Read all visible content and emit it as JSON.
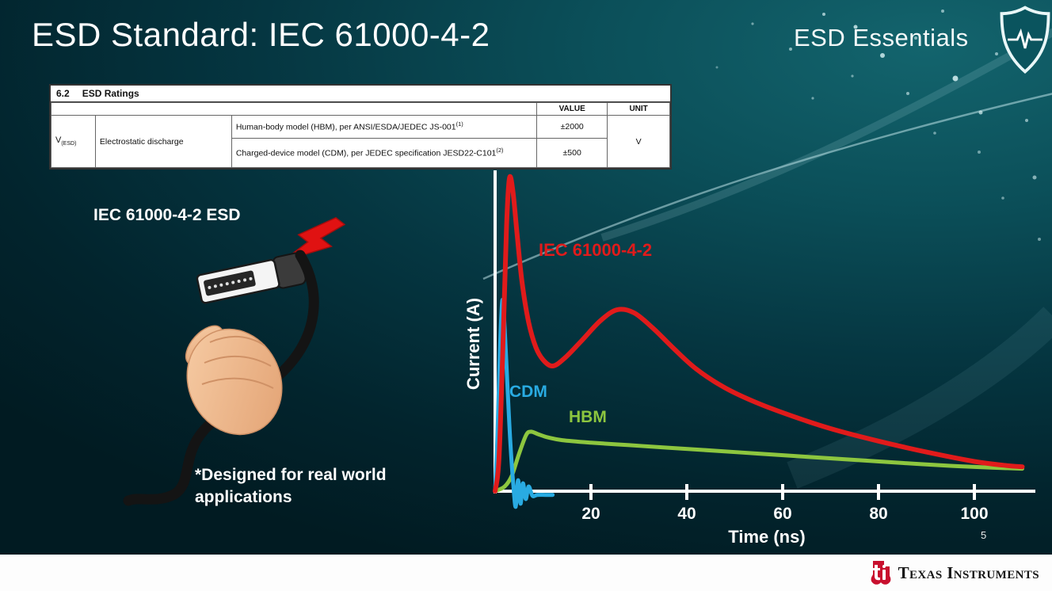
{
  "slide": {
    "title": "ESD Standard: IEC 61000-4-2",
    "series_brand": "ESD Essentials",
    "page_number": "5"
  },
  "ratings_table": {
    "section_number": "6.2",
    "section_title": "ESD Ratings",
    "value_header": "VALUE",
    "unit_header": "UNIT",
    "symbol_base": "V",
    "symbol_sub": "(ESD)",
    "parameter": "Electrostatic discharge",
    "rows": [
      {
        "description": "Human-body model (HBM), per ANSI/ESDA/JEDEC JS-001",
        "footnote": "(1)",
        "value": "±2000"
      },
      {
        "description": "Charged-device model (CDM), per JEDEC specification JESD22-C101",
        "footnote": "(2)",
        "value": "±500"
      }
    ],
    "unit": "V"
  },
  "illustration": {
    "caption": "IEC 61000-4-2 ESD",
    "note": "*Designed for real world\napplications"
  },
  "footer": {
    "brand": "Texas Instruments"
  },
  "icons": {
    "top_right": "esd-shield-with-pulse",
    "strike": "red-lightning-bolt",
    "footer": "ti-red-bug"
  },
  "colors": {
    "background_teal": "#0b4f59",
    "iec_red": "#e01b1b",
    "cdm_cyan": "#29abe2",
    "hbm_green": "#8dc63f",
    "axis_white": "#ffffff"
  },
  "chart_data": {
    "type": "line",
    "title": "",
    "xlabel": "Time (ns)",
    "ylabel": "Current (A)",
    "x_ticks": [
      20,
      40,
      60,
      80,
      100
    ],
    "xlim": [
      0,
      112
    ],
    "grid": false,
    "y_axis_note": "y-axis unlabeled; amplitudes relative to IEC 61000-4-2 peak = 1.0",
    "series": [
      {
        "name": "IEC 61000-4-2",
        "color": "#e01b1b",
        "stroke_width": 6,
        "points": [
          [
            0,
            0
          ],
          [
            0.8,
            0.1
          ],
          [
            1.6,
            0.45
          ],
          [
            2.4,
            0.85
          ],
          [
            3,
            1
          ],
          [
            3.7,
            0.96
          ],
          [
            4.6,
            0.82
          ],
          [
            5.6,
            0.67
          ],
          [
            7,
            0.54
          ],
          [
            8.5,
            0.46
          ],
          [
            10,
            0.42
          ],
          [
            12,
            0.4
          ],
          [
            14.5,
            0.425
          ],
          [
            18,
            0.48
          ],
          [
            22,
            0.545
          ],
          [
            25.5,
            0.58
          ],
          [
            29,
            0.57
          ],
          [
            33,
            0.52
          ],
          [
            37,
            0.46
          ],
          [
            42,
            0.39
          ],
          [
            48,
            0.33
          ],
          [
            55,
            0.28
          ],
          [
            62,
            0.24
          ],
          [
            70,
            0.2
          ],
          [
            80,
            0.16
          ],
          [
            90,
            0.125
          ],
          [
            100,
            0.095
          ],
          [
            106,
            0.083
          ],
          [
            110,
            0.078
          ]
        ]
      },
      {
        "name": "CDM",
        "color": "#29abe2",
        "stroke_width": 5,
        "points": [
          [
            0,
            0
          ],
          [
            0.5,
            0.18
          ],
          [
            1,
            0.45
          ],
          [
            1.5,
            0.61
          ],
          [
            2,
            0.52
          ],
          [
            2.6,
            0.33
          ],
          [
            3.2,
            0.15
          ],
          [
            3.8,
            0.02
          ],
          [
            4.3,
            -0.05
          ],
          [
            4.8,
            0.035
          ],
          [
            5.3,
            -0.04
          ],
          [
            5.8,
            0.025
          ],
          [
            6.4,
            -0.025
          ],
          [
            7,
            0.015
          ],
          [
            7.8,
            -0.015
          ],
          [
            8.8,
            -0.012
          ],
          [
            10.5,
            -0.012
          ],
          [
            12,
            -0.012
          ]
        ]
      },
      {
        "name": "HBM",
        "color": "#8dc63f",
        "stroke_width": 5,
        "points": [
          [
            0,
            0
          ],
          [
            2,
            0.015
          ],
          [
            3.5,
            0.05
          ],
          [
            5,
            0.12
          ],
          [
            6.5,
            0.18
          ],
          [
            7.5,
            0.19
          ],
          [
            9,
            0.182
          ],
          [
            11,
            0.172
          ],
          [
            14,
            0.163
          ],
          [
            20,
            0.155
          ],
          [
            28,
            0.147
          ],
          [
            36,
            0.139
          ],
          [
            45,
            0.13
          ],
          [
            55,
            0.12
          ],
          [
            65,
            0.11
          ],
          [
            75,
            0.1
          ],
          [
            85,
            0.09
          ],
          [
            95,
            0.081
          ],
          [
            104,
            0.075
          ],
          [
            110,
            0.072
          ]
        ]
      }
    ]
  }
}
